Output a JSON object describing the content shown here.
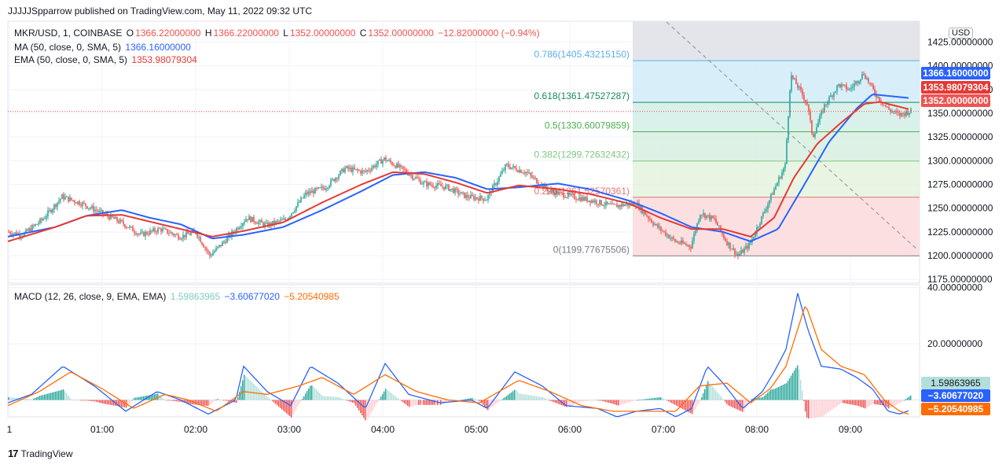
{
  "header": {
    "published": "JJJJJSpparrow published on TradingView.com, May 11, 2022 09:32 UTC"
  },
  "legend": {
    "symbol": "MKR/USD, 1, COINBASE",
    "o_label": "O",
    "o_value": "1366.22000000",
    "h_label": "H",
    "h_value": "1366.22000000",
    "l_label": "L",
    "l_value": "1352.00000000",
    "c_label": "C",
    "c_value": "1352.00000000",
    "change": "−12.82000000 (−0.94%)",
    "ma_label": "MA (50, close, 0, SMA, 5)",
    "ma_value": "1366.16000000",
    "ema_label": "EMA (50, close, 0, SMA, 5)",
    "ema_value": "1353.98079304",
    "macd_label": "MACD (12, 26, close, 9, EMA, EMA)",
    "macd_hist": "1.59863965",
    "macd_line": "−3.60677020",
    "macd_signal": "−5.20540985"
  },
  "footer": {
    "brand": "TradingView"
  },
  "colors": {
    "up": "#26a69a",
    "down": "#ef5350",
    "ma": "#2962ff",
    "ema": "#e53935",
    "macd": "#2962ff",
    "signal": "#ff6d00"
  },
  "chart_data": {
    "type": "candlestick",
    "price_axis": {
      "ticks": [
        "1425.00000000",
        "1400.00000000",
        "1375.00000000",
        "1350.00000000",
        "1325.00000000",
        "1300.00000000",
        "1275.00000000",
        "1250.00000000",
        "1225.00000000",
        "1200.00000000",
        "1175.00000000"
      ],
      "range": [
        1171,
        1447
      ],
      "currency": "USD"
    },
    "time_axis": {
      "ticks": [
        "1",
        "01:00",
        "02:00",
        "03:00",
        "04:00",
        "05:00",
        "06:00",
        "07:00",
        "08:00",
        "09:00"
      ]
    },
    "price_labels": {
      "ma": "1366.16000000",
      "ema": "1353.98079304",
      "last": "1352.00000000"
    },
    "fibonacci": [
      {
        "level": "0.786",
        "price": 1405.4321515,
        "label": "0.786(1405.43215150)"
      },
      {
        "level": "0.618",
        "price": 1361.47527287,
        "label": "0.618(1361.47527287)"
      },
      {
        "level": "0.5",
        "price": 1330.60079859,
        "label": "0.5(1330.60079859)"
      },
      {
        "level": "0.382",
        "price": 1299.72632432,
        "label": "0.382(1299.72632432)"
      },
      {
        "level": "0.236",
        "price": 1261.52570361,
        "label": "0.236(1261.52570361)"
      },
      {
        "level": "0",
        "price": 1199.77675506,
        "label": "0(1199.77675506)"
      }
    ],
    "price_anchors": [
      [
        0,
        1225
      ],
      [
        20,
        1222
      ],
      [
        45,
        1238
      ],
      [
        70,
        1262
      ],
      [
        95,
        1255
      ],
      [
        120,
        1245
      ],
      [
        145,
        1235
      ],
      [
        170,
        1222
      ],
      [
        195,
        1228
      ],
      [
        220,
        1220
      ],
      [
        240,
        1225
      ],
      [
        258,
        1200
      ],
      [
        280,
        1218
      ],
      [
        305,
        1240
      ],
      [
        330,
        1232
      ],
      [
        355,
        1238
      ],
      [
        380,
        1265
      ],
      [
        405,
        1272
      ],
      [
        430,
        1292
      ],
      [
        455,
        1288
      ],
      [
        480,
        1302
      ],
      [
        505,
        1290
      ],
      [
        530,
        1276
      ],
      [
        560,
        1272
      ],
      [
        585,
        1262
      ],
      [
        610,
        1260
      ],
      [
        635,
        1295
      ],
      [
        660,
        1288
      ],
      [
        690,
        1268
      ],
      [
        720,
        1262
      ],
      [
        745,
        1258
      ],
      [
        770,
        1252
      ],
      [
        800,
        1255
      ],
      [
        825,
        1232
      ],
      [
        850,
        1215
      ],
      [
        870,
        1210
      ],
      [
        882,
        1245
      ],
      [
        900,
        1238
      ],
      [
        915,
        1215
      ],
      [
        930,
        1200
      ],
      [
        945,
        1212
      ],
      [
        960,
        1240
      ],
      [
        975,
        1268
      ],
      [
        990,
        1295
      ],
      [
        997,
        1390
      ],
      [
        1005,
        1380
      ],
      [
        1018,
        1360
      ],
      [
        1025,
        1325
      ],
      [
        1040,
        1358
      ],
      [
        1058,
        1380
      ],
      [
        1072,
        1375
      ],
      [
        1090,
        1392
      ],
      [
        1105,
        1370
      ],
      [
        1120,
        1355
      ],
      [
        1135,
        1348
      ],
      [
        1148,
        1352
      ]
    ],
    "ma_anchors": [
      [
        0,
        1220
      ],
      [
        60,
        1230
      ],
      [
        100,
        1242
      ],
      [
        145,
        1248
      ],
      [
        180,
        1240
      ],
      [
        220,
        1233
      ],
      [
        260,
        1218
      ],
      [
        300,
        1222
      ],
      [
        350,
        1230
      ],
      [
        400,
        1248
      ],
      [
        450,
        1268
      ],
      [
        490,
        1285
      ],
      [
        530,
        1288
      ],
      [
        570,
        1282
      ],
      [
        610,
        1270
      ],
      [
        650,
        1272
      ],
      [
        700,
        1276
      ],
      [
        740,
        1270
      ],
      [
        790,
        1258
      ],
      [
        830,
        1245
      ],
      [
        870,
        1230
      ],
      [
        910,
        1225
      ],
      [
        945,
        1215
      ],
      [
        980,
        1228
      ],
      [
        1010,
        1270
      ],
      [
        1045,
        1320
      ],
      [
        1080,
        1355
      ],
      [
        1100,
        1370
      ],
      [
        1148,
        1366
      ]
    ],
    "ema_anchors": [
      [
        0,
        1215
      ],
      [
        60,
        1230
      ],
      [
        100,
        1242
      ],
      [
        145,
        1243
      ],
      [
        180,
        1236
      ],
      [
        220,
        1228
      ],
      [
        260,
        1220
      ],
      [
        300,
        1226
      ],
      [
        350,
        1235
      ],
      [
        400,
        1256
      ],
      [
        450,
        1275
      ],
      [
        490,
        1288
      ],
      [
        530,
        1286
      ],
      [
        570,
        1277
      ],
      [
        610,
        1266
      ],
      [
        650,
        1274
      ],
      [
        700,
        1270
      ],
      [
        740,
        1265
      ],
      [
        790,
        1255
      ],
      [
        830,
        1240
      ],
      [
        870,
        1228
      ],
      [
        910,
        1228
      ],
      [
        945,
        1220
      ],
      [
        975,
        1240
      ],
      [
        1000,
        1282
      ],
      [
        1030,
        1318
      ],
      [
        1060,
        1340
      ],
      [
        1090,
        1360
      ],
      [
        1110,
        1362
      ],
      [
        1148,
        1354
      ]
    ],
    "macd": {
      "range": [
        -6,
        41
      ],
      "ticks": [
        "40.00000000",
        "20.00000000"
      ],
      "macd_anchors": [
        [
          0,
          -1
        ],
        [
          30,
          2
        ],
        [
          70,
          12
        ],
        [
          110,
          5
        ],
        [
          150,
          -4
        ],
        [
          190,
          3
        ],
        [
          220,
          0
        ],
        [
          255,
          -5
        ],
        [
          290,
          0
        ],
        [
          300,
          12
        ],
        [
          330,
          3
        ],
        [
          360,
          -2
        ],
        [
          385,
          12
        ],
        [
          420,
          6
        ],
        [
          455,
          -3
        ],
        [
          480,
          13
        ],
        [
          510,
          2
        ],
        [
          550,
          -1
        ],
        [
          590,
          0
        ],
        [
          610,
          -3
        ],
        [
          645,
          10
        ],
        [
          680,
          5
        ],
        [
          710,
          -2
        ],
        [
          750,
          -3
        ],
        [
          775,
          -6
        ],
        [
          800,
          -4
        ],
        [
          830,
          -3
        ],
        [
          850,
          -6
        ],
        [
          870,
          -3
        ],
        [
          890,
          12
        ],
        [
          910,
          6
        ],
        [
          935,
          -3
        ],
        [
          960,
          3
        ],
        [
          975,
          10
        ],
        [
          990,
          18
        ],
        [
          1005,
          38
        ],
        [
          1018,
          25
        ],
        [
          1035,
          12
        ],
        [
          1060,
          11
        ],
        [
          1080,
          8
        ],
        [
          1100,
          4
        ],
        [
          1120,
          -4
        ],
        [
          1135,
          -5
        ],
        [
          1148,
          -3.6
        ]
      ],
      "signal_anchors": [
        [
          0,
          -2
        ],
        [
          40,
          3
        ],
        [
          80,
          10
        ],
        [
          120,
          4
        ],
        [
          160,
          -3
        ],
        [
          200,
          2
        ],
        [
          230,
          0
        ],
        [
          265,
          -4
        ],
        [
          300,
          3
        ],
        [
          330,
          2
        ],
        [
          370,
          5
        ],
        [
          400,
          8
        ],
        [
          440,
          2
        ],
        [
          480,
          9
        ],
        [
          520,
          3
        ],
        [
          560,
          0
        ],
        [
          600,
          -1
        ],
        [
          650,
          7
        ],
        [
          690,
          3
        ],
        [
          730,
          -2
        ],
        [
          770,
          -4
        ],
        [
          810,
          -4
        ],
        [
          850,
          -4
        ],
        [
          880,
          5
        ],
        [
          915,
          6
        ],
        [
          945,
          -1
        ],
        [
          970,
          4
        ],
        [
          990,
          12
        ],
        [
          1015,
          34
        ],
        [
          1035,
          18
        ],
        [
          1060,
          12
        ],
        [
          1090,
          9
        ],
        [
          1115,
          0
        ],
        [
          1135,
          -4
        ],
        [
          1148,
          -5.2
        ]
      ]
    }
  }
}
